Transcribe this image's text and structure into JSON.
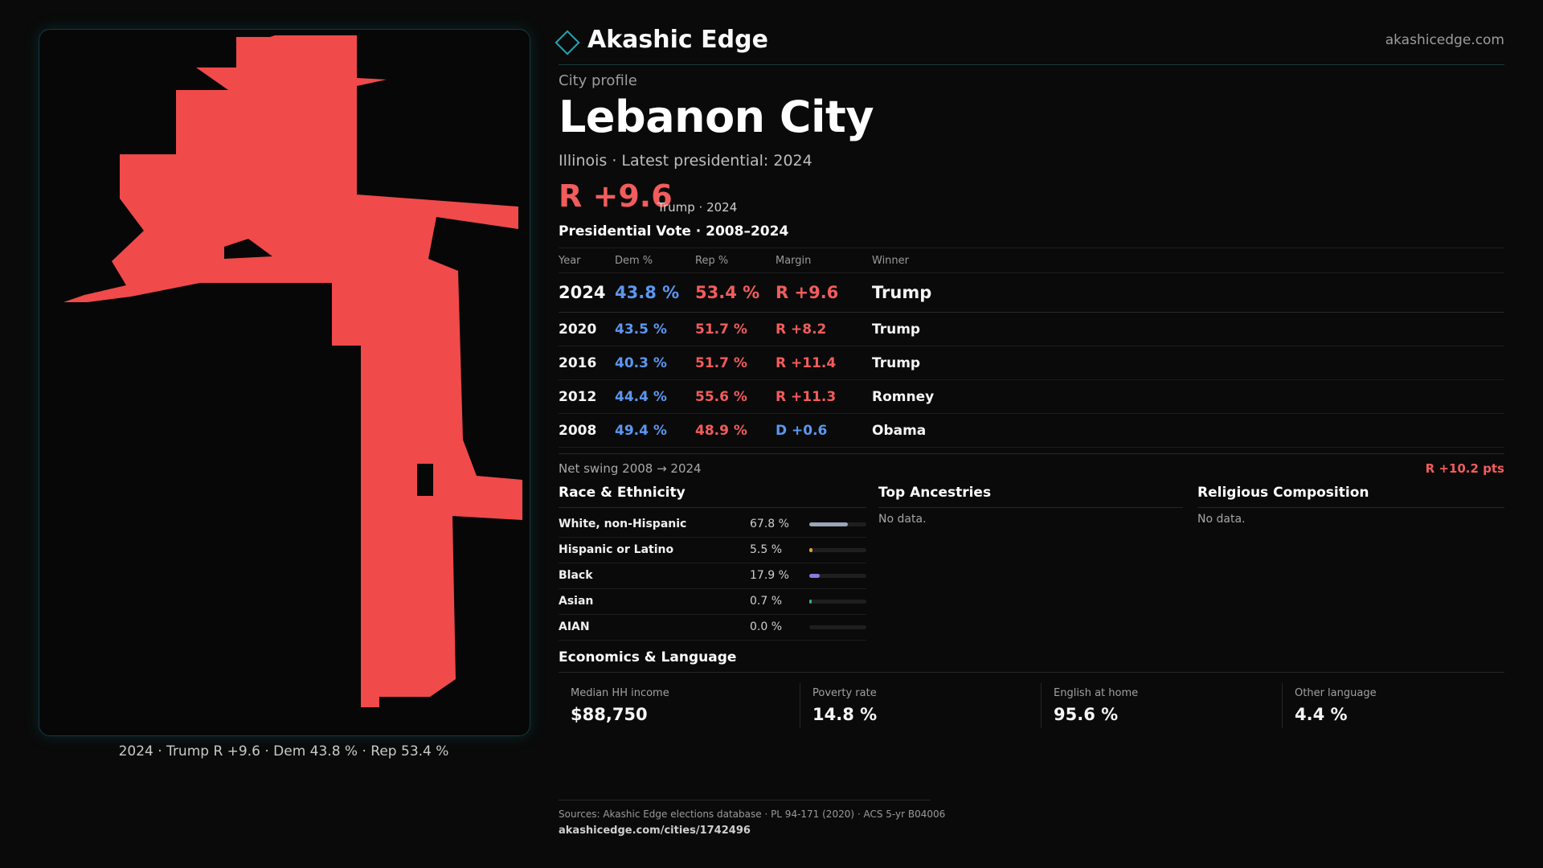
{
  "brand": {
    "name": "Akashic Edge",
    "site": "akashicedge.com",
    "accent": "#21a7b6"
  },
  "profile": {
    "kicker": "City profile",
    "city": "Lebanon City",
    "subtitle": "Illinois · Latest presidential: 2024",
    "margin": "R +9.6",
    "margin_note": "Trump · 2024"
  },
  "map": {
    "fill_color": "#f04a4a",
    "caption": "2024 · Trump R +9.6 · Dem 43.8 % · Rep 53.4 %"
  },
  "presidential": {
    "title": "Presidential Vote · 2008–2024",
    "headers": {
      "year": "Year",
      "dem": "Dem %",
      "rep": "Rep %",
      "margin": "Margin",
      "winner": "Winner"
    },
    "rows": [
      {
        "year": "2024",
        "dem": "43.8 %",
        "rep": "53.4 %",
        "margin": "R +9.6",
        "winner": "Trump"
      },
      {
        "year": "2020",
        "dem": "43.5 %",
        "rep": "51.7 %",
        "margin": "R +8.2",
        "winner": "Trump"
      },
      {
        "year": "2016",
        "dem": "40.3 %",
        "rep": "51.7 %",
        "margin": "R +11.4",
        "winner": "Trump"
      },
      {
        "year": "2012",
        "dem": "44.4 %",
        "rep": "55.6 %",
        "margin": "R +11.3",
        "winner": "Romney"
      },
      {
        "year": "2008",
        "dem": "49.4 %",
        "rep": "48.9 %",
        "margin": "D +0.6",
        "winner": "Obama"
      }
    ],
    "swing_label": "Net swing 2008 → 2024",
    "swing_value": "R +10.2 pts",
    "colors": {
      "dem": "#5b97f0",
      "rep": "#f25c5c"
    }
  },
  "race": {
    "title": "Race & Ethnicity",
    "items": [
      {
        "label": "White, non-Hispanic",
        "pct": "67.8 %",
        "value": 0.678,
        "color": "#9aa6b8"
      },
      {
        "label": "Hispanic or Latino",
        "pct": "5.5 %",
        "value": 0.055,
        "color": "#e0a030"
      },
      {
        "label": "Black",
        "pct": "17.9 %",
        "value": 0.179,
        "color": "#8a7ae0"
      },
      {
        "label": "Asian",
        "pct": "0.7 %",
        "value": 0.007,
        "color": "#3aaa8a"
      },
      {
        "label": "AIAN",
        "pct": "0.0 %",
        "value": 0.0,
        "color": "#c06a3a"
      }
    ]
  },
  "ancestries": {
    "title": "Top Ancestries",
    "empty": "No data."
  },
  "religion": {
    "title": "Religious Composition",
    "empty": "No data."
  },
  "economics": {
    "title": "Economics & Language",
    "cards": [
      {
        "label": "Median HH income",
        "value": "$88,750"
      },
      {
        "label": "Poverty rate",
        "value": "14.8 %"
      },
      {
        "label": "English at home",
        "value": "95.6 %"
      },
      {
        "label": "Other language",
        "value": "4.4 %"
      }
    ]
  },
  "sources": {
    "line": "Sources: Akashic Edge elections database · PL 94-171 (2020) · ACS 5-yr B04006",
    "url": "akashicedge.com/cities/1742496"
  }
}
